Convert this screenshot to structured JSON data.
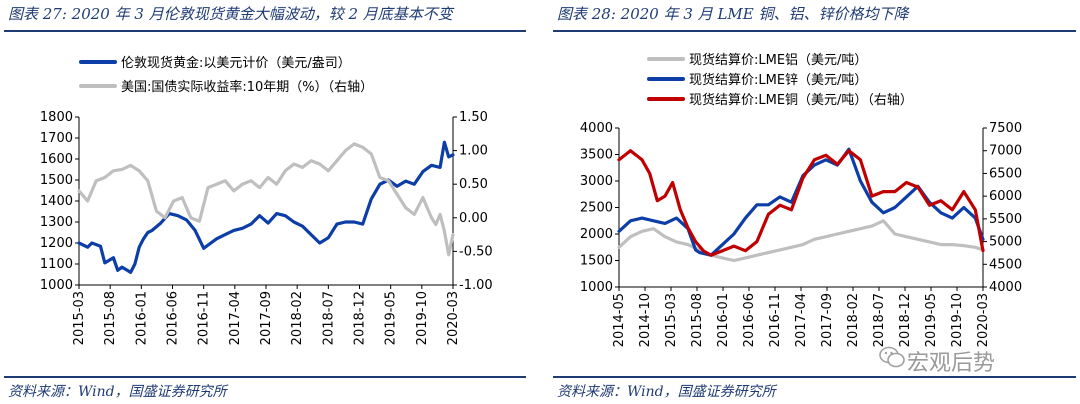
{
  "left": {
    "title": "图表 27:  2020 年 3 月伦敦现货黄金大幅波动，较 2 月底基本不变",
    "source": "资料来源：Wind，国盛证券研究所"
  },
  "right": {
    "title": "图表 28:  2020 年 3 月 LME 铜、铝、锌价格均下降",
    "source": "资料来源：Wind，国盛证券研究所"
  },
  "watermark": {
    "text": "宏观后势",
    "icon": "wechat-icon"
  },
  "chart_data": [
    {
      "type": "line",
      "title": "2020 年 3 月伦敦现货黄金大幅波动，较 2 月底基本不变",
      "x_tick_labels": [
        "2015-03",
        "2015-08",
        "2016-01",
        "2016-06",
        "2016-11",
        "2017-04",
        "2017-09",
        "2018-02",
        "2018-07",
        "2018-12",
        "2019-05",
        "2019-10",
        "2020-03"
      ],
      "y_left": {
        "range": [
          1000,
          1800
        ],
        "ticks": [
          "1000",
          "1100",
          "1200",
          "1300",
          "1400",
          "1500",
          "1600",
          "1700",
          "1800"
        ]
      },
      "y_right": {
        "range": [
          -1.0,
          1.5
        ],
        "ticks": [
          "-1.00",
          "-0.50",
          "0.00",
          "0.50",
          "1.00",
          "1.50"
        ]
      },
      "legend_position": "top-left",
      "series": [
        {
          "name": "伦敦现货黄金:以美元计价（美元/盎司）",
          "axis": "left",
          "color": "#0d3ea8",
          "x": [
            0,
            2,
            3,
            5,
            6,
            8,
            9,
            10,
            12,
            13,
            14,
            15,
            16,
            17,
            19,
            21,
            23,
            25,
            27,
            29,
            30,
            32,
            34,
            36,
            38,
            40,
            42,
            44,
            46,
            48,
            50,
            52,
            54,
            56,
            58,
            60,
            62,
            64,
            66,
            68,
            70,
            72,
            74,
            76,
            78,
            80,
            82,
            84,
            85,
            86,
            87
          ],
          "values": [
            1200,
            1180,
            1200,
            1185,
            1105,
            1130,
            1070,
            1085,
            1060,
            1100,
            1180,
            1220,
            1250,
            1260,
            1295,
            1340,
            1330,
            1310,
            1260,
            1175,
            1190,
            1220,
            1240,
            1260,
            1270,
            1290,
            1330,
            1295,
            1340,
            1330,
            1300,
            1280,
            1240,
            1200,
            1225,
            1290,
            1300,
            1300,
            1290,
            1410,
            1480,
            1500,
            1470,
            1495,
            1480,
            1540,
            1570,
            1560,
            1680,
            1610,
            1620
          ]
        },
        {
          "name": "美国:国债实际收益率:10年期（%）（右轴）",
          "axis": "right",
          "color": "#bfbfbf",
          "x": [
            0,
            2,
            4,
            6,
            8,
            10,
            12,
            14,
            16,
            18,
            20,
            22,
            24,
            26,
            28,
            30,
            32,
            34,
            36,
            38,
            40,
            42,
            44,
            46,
            48,
            50,
            52,
            54,
            56,
            58,
            60,
            62,
            64,
            66,
            68,
            70,
            72,
            74,
            76,
            78,
            80,
            82,
            83,
            84,
            85,
            86,
            87
          ],
          "values": [
            0.4,
            0.25,
            0.55,
            0.6,
            0.7,
            0.72,
            0.78,
            0.7,
            0.55,
            0.1,
            0.0,
            0.25,
            0.3,
            0.0,
            -0.05,
            0.45,
            0.5,
            0.55,
            0.4,
            0.5,
            0.55,
            0.45,
            0.6,
            0.5,
            0.7,
            0.8,
            0.75,
            0.85,
            0.8,
            0.7,
            0.85,
            1.0,
            1.1,
            1.05,
            0.95,
            0.6,
            0.55,
            0.35,
            0.15,
            0.05,
            0.3,
            0.0,
            -0.1,
            0.05,
            -0.2,
            -0.55,
            -0.25
          ]
        }
      ]
    },
    {
      "type": "line",
      "title": "2020 年 3 月 LME 铜、铝、锌价格均下降",
      "x_tick_labels": [
        "2014-05",
        "2014-10",
        "2015-03",
        "2015-08",
        "2016-01",
        "2016-06",
        "2016-11",
        "2017-04",
        "2017-09",
        "2018-02",
        "2018-07",
        "2018-12",
        "2019-05",
        "2019-10",
        "2020-03"
      ],
      "y_left": {
        "range": [
          1000,
          4000
        ],
        "ticks": [
          "1000",
          "1500",
          "2000",
          "2500",
          "3000",
          "3500",
          "4000"
        ]
      },
      "y_right": {
        "range": [
          4000,
          7500
        ],
        "ticks": [
          "4000",
          "4500",
          "5000",
          "5500",
          "6000",
          "6500",
          "7000",
          "7500"
        ]
      },
      "legend_position": "top-left",
      "series": [
        {
          "name": "现货结算价:LME铝（美元/吨）",
          "axis": "left",
          "color": "#bfbfbf",
          "x": [
            0,
            3,
            6,
            9,
            12,
            15,
            18,
            21,
            24,
            27,
            30,
            33,
            36,
            39,
            42,
            45,
            48,
            51,
            54,
            57,
            60,
            63,
            66,
            69,
            72,
            75,
            78,
            81,
            84,
            87,
            90,
            93,
            95
          ],
          "values": [
            1750,
            1950,
            2050,
            2100,
            1950,
            1850,
            1800,
            1700,
            1600,
            1550,
            1500,
            1550,
            1600,
            1650,
            1700,
            1750,
            1800,
            1900,
            1950,
            2000,
            2050,
            2100,
            2150,
            2250,
            2000,
            1950,
            1900,
            1850,
            1800,
            1800,
            1780,
            1750,
            1700
          ]
        },
        {
          "name": "现货结算价:LME锌（美元/吨）",
          "axis": "left",
          "color": "#0d3ea8",
          "x": [
            0,
            3,
            6,
            9,
            12,
            15,
            18,
            20,
            21,
            24,
            27,
            30,
            33,
            36,
            39,
            42,
            45,
            48,
            51,
            54,
            57,
            60,
            63,
            66,
            69,
            72,
            75,
            78,
            81,
            84,
            87,
            90,
            93,
            95
          ],
          "values": [
            2050,
            2250,
            2300,
            2250,
            2200,
            2300,
            2100,
            1700,
            1650,
            1600,
            1800,
            2000,
            2300,
            2550,
            2550,
            2700,
            2600,
            3100,
            3300,
            3400,
            3300,
            3600,
            3000,
            2600,
            2400,
            2500,
            2700,
            2900,
            2600,
            2400,
            2300,
            2500,
            2300,
            1900
          ]
        },
        {
          "name": "现货结算价:LME铜（美元/吨）（右轴）",
          "axis": "right",
          "color": "#c00000",
          "x": [
            0,
            3,
            6,
            8,
            10,
            12,
            14,
            16,
            18,
            20,
            22,
            24,
            27,
            30,
            33,
            36,
            39,
            42,
            45,
            48,
            51,
            54,
            57,
            60,
            63,
            66,
            69,
            72,
            75,
            78,
            81,
            84,
            87,
            90,
            93,
            95
          ],
          "values": [
            6800,
            7000,
            6800,
            6500,
            5900,
            6000,
            6300,
            5700,
            5300,
            5000,
            4800,
            4700,
            4800,
            4900,
            4800,
            5000,
            5600,
            5800,
            5700,
            6400,
            6800,
            6900,
            6700,
            7000,
            6800,
            6000,
            6100,
            6100,
            6300,
            6200,
            5800,
            5900,
            5700,
            6100,
            5700,
            4800
          ]
        }
      ]
    }
  ]
}
